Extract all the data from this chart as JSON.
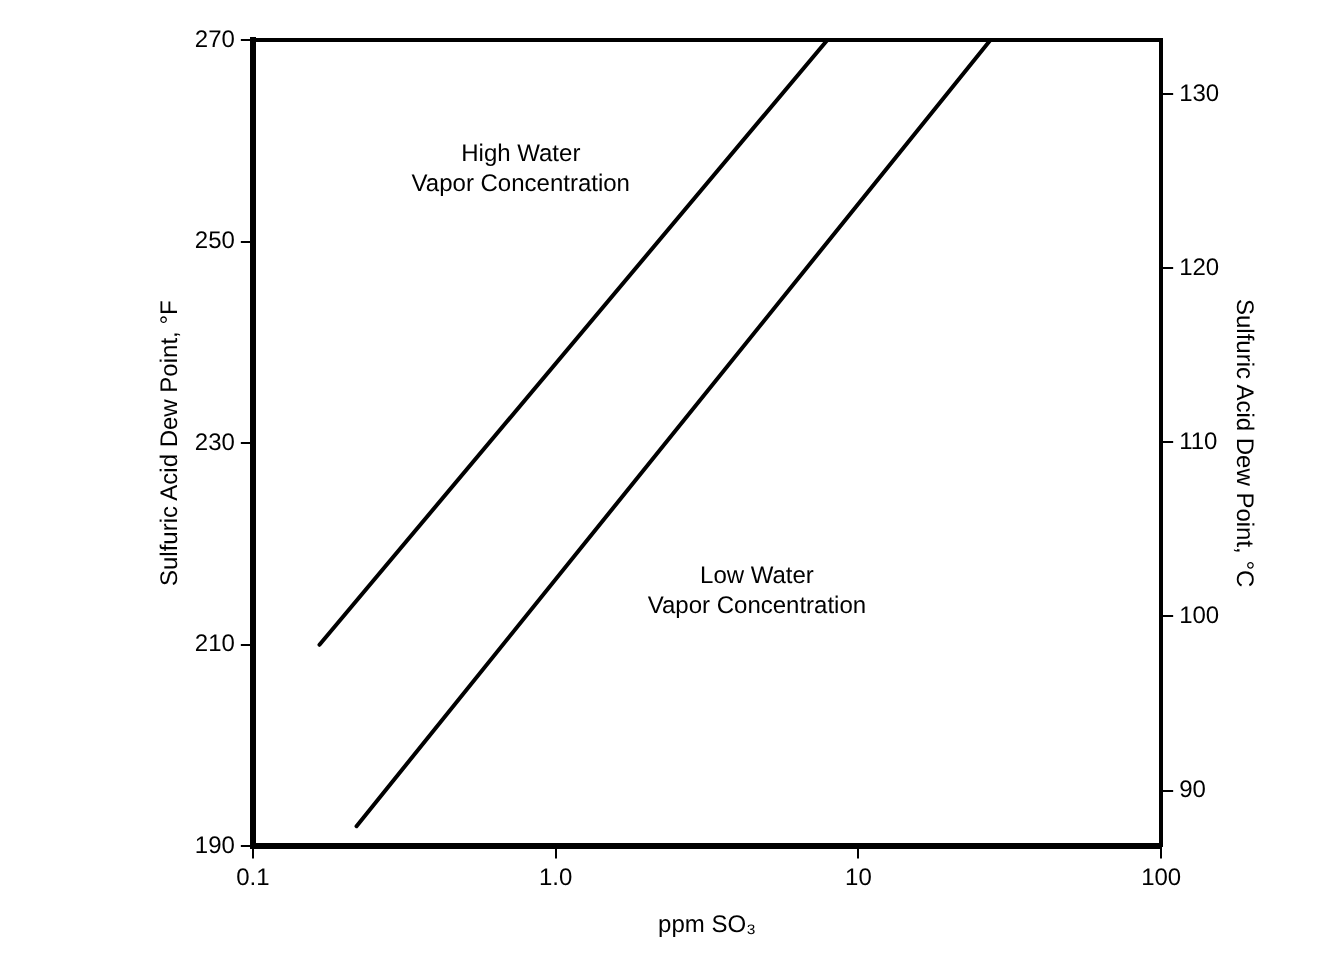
{
  "chart_data": {
    "type": "line",
    "xlabel": "ppm SO₃",
    "ylabel": "Sulfuric Acid Dew Point, °F",
    "y2label": "Sulfuric Acid Dew Point, °C",
    "log": "x",
    "xlim": [
      0.1,
      100
    ],
    "xticks": [
      0.1,
      {
        "value": 1,
        "label": "1.0"
      },
      10,
      100
    ],
    "ylim": [
      190,
      270
    ],
    "yticks": [
      190,
      210,
      230,
      250,
      270
    ],
    "y2lim": [
      86.8,
      133.1
    ],
    "y2ticks": [
      90,
      100,
      110,
      120,
      130
    ],
    "series": [
      {
        "color": "#000000",
        "x": [
          0.166,
          7.9
        ],
        "values": [
          210,
          270
        ]
      },
      {
        "color": "#000000",
        "x": [
          0.22,
          27.3
        ],
        "values": [
          192,
          270
        ]
      }
    ],
    "annotations": [
      "High Water\nVapor Concentration",
      "Low Water\nVapor Concentration"
    ],
    "grid": false,
    "legend": false,
    "marker": "none",
    "line_style": "solid"
  }
}
